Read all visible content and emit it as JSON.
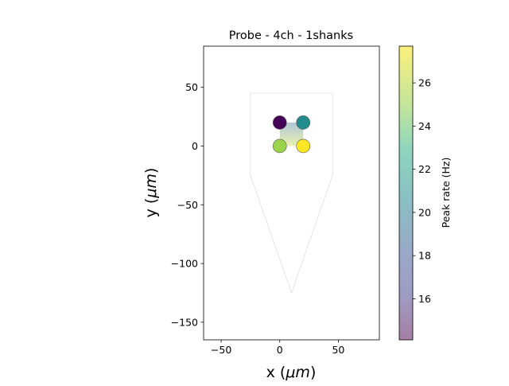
{
  "chart_data": {
    "type": "scatter",
    "title": "Probe - 4ch - 1shanks",
    "xlabel": "x ($\\mu m$)",
    "xlabel_plain": "x (",
    "xlabel_mu": "μm",
    "xlabel_close": ")",
    "ylabel_plain": "y (",
    "ylabel_mu": "μm",
    "ylabel_close": ")",
    "xlim": [
      -65,
      85
    ],
    "ylim": [
      -165,
      85
    ],
    "xticks": [
      -50,
      0,
      50
    ],
    "yticks": [
      -150,
      -100,
      -50,
      0,
      50
    ],
    "grid": false,
    "probe_outline": [
      [
        -25,
        45
      ],
      [
        45,
        45
      ],
      [
        45,
        -25
      ],
      [
        10,
        -125
      ],
      [
        -25,
        -25
      ],
      [
        -25,
        45
      ]
    ],
    "interpolation_extent": {
      "x": [
        0,
        20
      ],
      "y": [
        0,
        20
      ]
    },
    "channels": [
      {
        "x": 0,
        "y": 20,
        "value": 14.2
      },
      {
        "x": 20,
        "y": 20,
        "value": 20.6
      },
      {
        "x": 0,
        "y": 0,
        "value": 25.6
      },
      {
        "x": 20,
        "y": 0,
        "value": 27.7
      }
    ],
    "colorbar": {
      "label": "Peak rate (Hz)",
      "range": [
        14.1,
        27.7
      ],
      "ticks": [
        16,
        18,
        20,
        22,
        24,
        26
      ],
      "colormap": "viridis",
      "alpha": 0.5
    }
  }
}
